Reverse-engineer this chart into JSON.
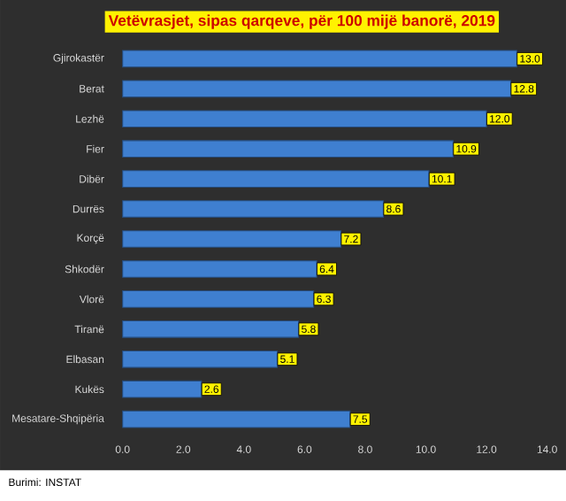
{
  "chart_data": {
    "type": "bar",
    "orientation": "horizontal",
    "title": "Vetëvrasjet, sipas qarqeve, për 100 mijë banorë, 2019",
    "categories": [
      "Gjirokastër",
      "Berat",
      "Lezhë",
      "Fier",
      "Dibër",
      "Durrës",
      "Korçë",
      "Shkodër",
      "Vlorë",
      "Tiranë",
      "Elbasan",
      "Kukës",
      "Mesatare-Shqipëria"
    ],
    "values": [
      13.0,
      12.8,
      12.0,
      10.9,
      10.1,
      8.6,
      7.2,
      6.4,
      6.3,
      5.8,
      5.1,
      2.6,
      7.5
    ],
    "value_labels": [
      "13.0",
      "12.8",
      "12.0",
      "10.9",
      "10.1",
      "8.6",
      "7.2",
      "6.4",
      "6.3",
      "5.8",
      "5.1",
      "2.6",
      "7.5"
    ],
    "color": "#3f7fd0",
    "xlim": [
      0,
      14
    ],
    "xticks": [
      {
        "value": 0,
        "label": "0.0"
      },
      {
        "value": 2,
        "label": "2.0"
      },
      {
        "value": 4,
        "label": "4.0"
      },
      {
        "value": 6,
        "label": "6.0"
      },
      {
        "value": 8,
        "label": "8.0"
      },
      {
        "value": 10,
        "label": "10.0"
      },
      {
        "value": 12,
        "label": "12.0"
      },
      {
        "value": 14,
        "label": "14.0"
      }
    ],
    "grid": false,
    "annotations": [
      "Burimi: INSTAT"
    ]
  }
}
